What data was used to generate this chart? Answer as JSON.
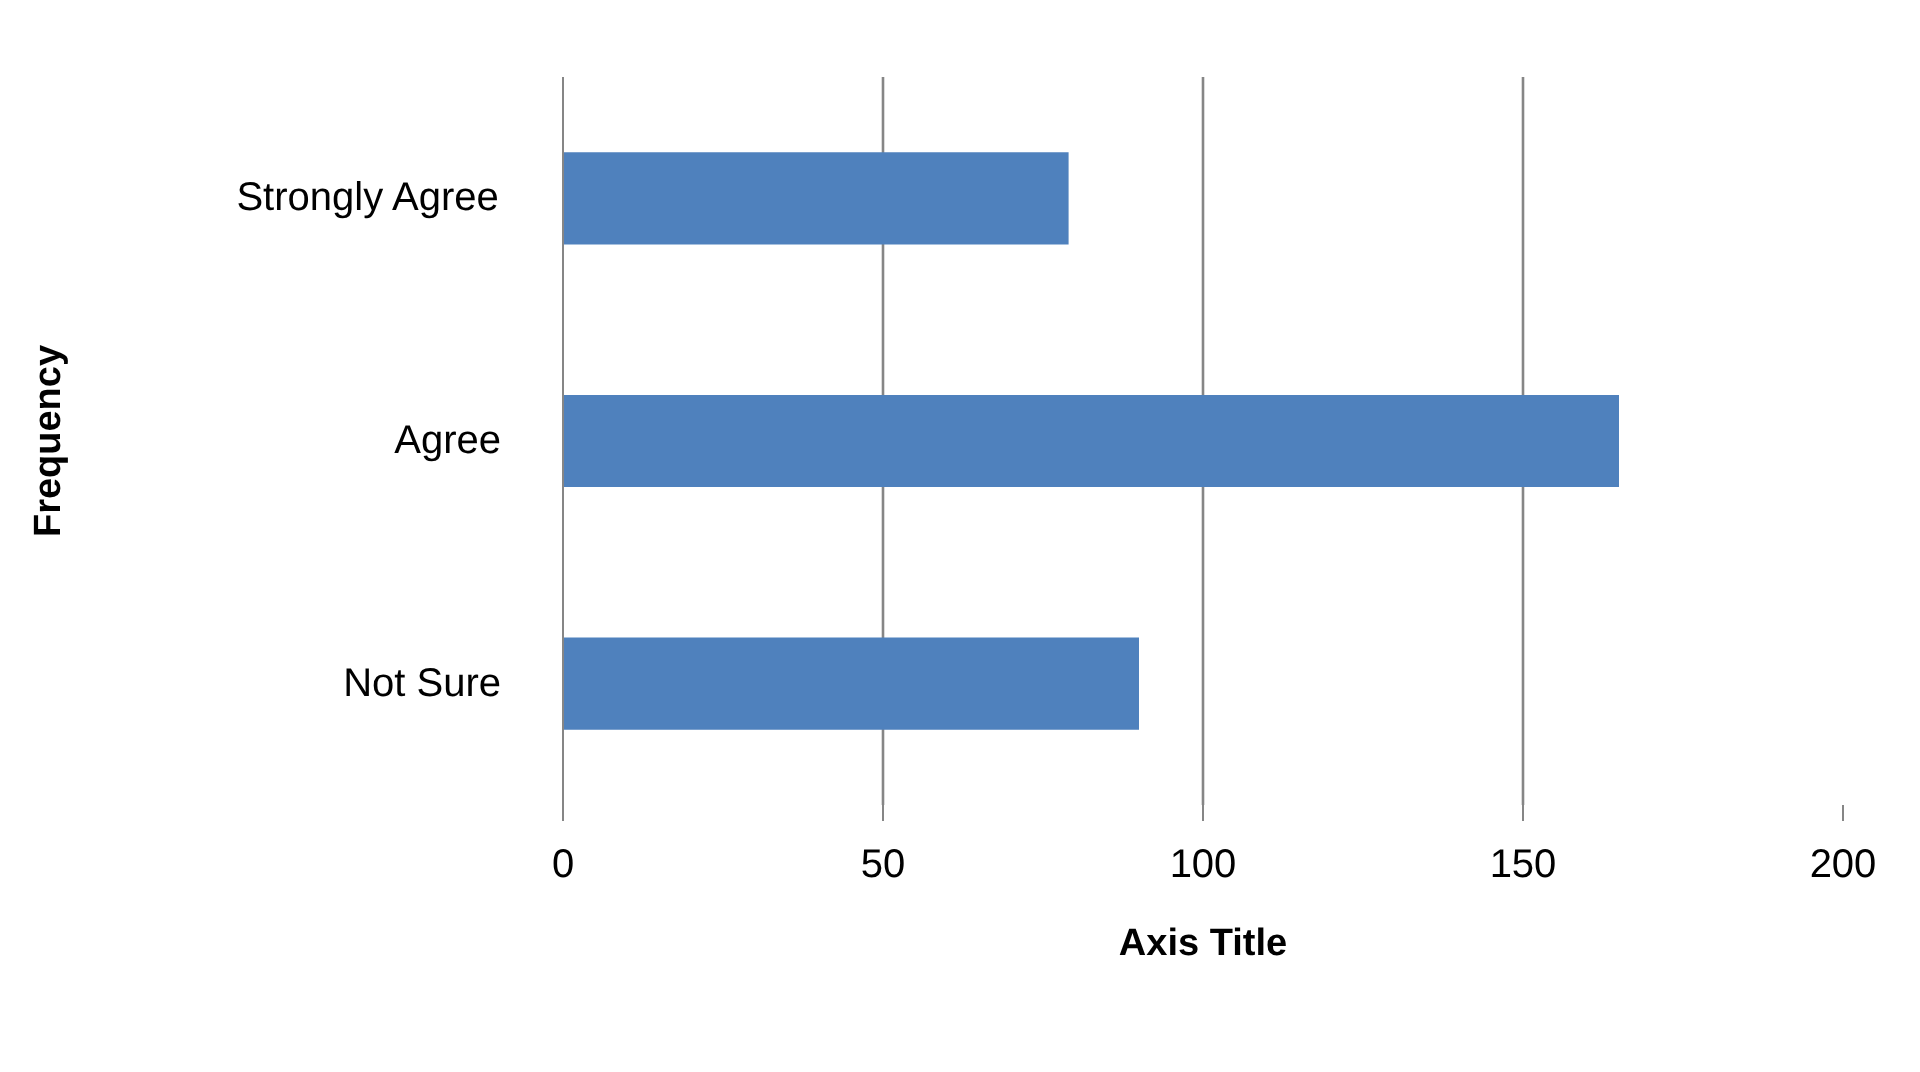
{
  "chart_data": {
    "type": "bar",
    "orientation": "horizontal",
    "categories": [
      "Strongly Agree",
      "Agree",
      "Not Sure"
    ],
    "values": [
      79,
      165,
      90
    ],
    "color": "#4f81bd",
    "xlabel": "Axis Title",
    "ylabel": "Frequency",
    "xlim": [
      0,
      200
    ],
    "xticks": [
      0,
      50,
      100,
      150,
      200
    ],
    "grid": "x"
  }
}
